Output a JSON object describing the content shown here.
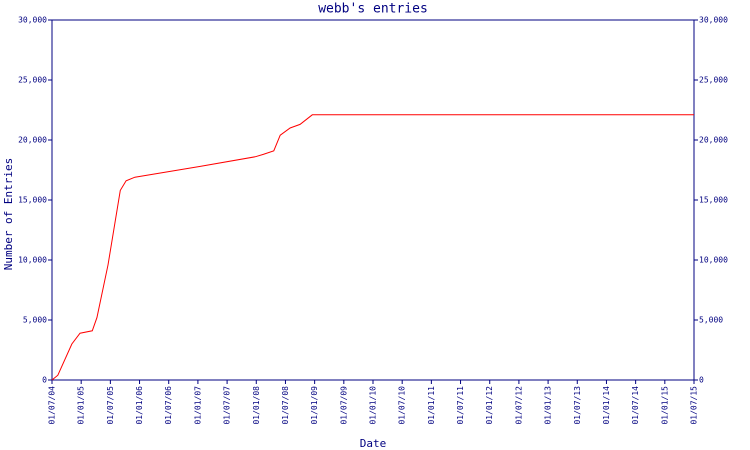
{
  "chart_data": {
    "type": "line",
    "title": "webb's entries",
    "x_label": "Date",
    "y_label": "Number of Entries",
    "x": [
      2004.5,
      2004.6,
      2004.84,
      2004.98,
      2005.19,
      2005.27,
      2005.46,
      2005.67,
      2005.77,
      2005.92,
      2007.04,
      2007.98,
      2008.12,
      2008.3,
      2008.41,
      2008.58,
      2008.75,
      2008.96,
      2015.5
    ],
    "series": [
      {
        "name": "webb",
        "color": "#ff0000",
        "values": [
          0,
          400,
          3000,
          3900,
          4100,
          5200,
          9600,
          15800,
          16600,
          16900,
          17800,
          18600,
          18800,
          19100,
          20400,
          21000,
          21300,
          22100,
          22100
        ]
      }
    ],
    "xlim": [
      2004.5,
      2015.5
    ],
    "xticks": [
      {
        "value": 2004.5,
        "label": "01/07/04"
      },
      {
        "value": 2005,
        "label": "01/01/05"
      },
      {
        "value": 2005.5,
        "label": "01/07/05"
      },
      {
        "value": 2006,
        "label": "01/01/06"
      },
      {
        "value": 2006.5,
        "label": "01/07/06"
      },
      {
        "value": 2007,
        "label": "01/01/07"
      },
      {
        "value": 2007.5,
        "label": "01/07/07"
      },
      {
        "value": 2008,
        "label": "01/01/08"
      },
      {
        "value": 2008.5,
        "label": "01/07/08"
      },
      {
        "value": 2009,
        "label": "01/01/09"
      },
      {
        "value": 2009.5,
        "label": "01/07/09"
      },
      {
        "value": 2010,
        "label": "01/01/10"
      },
      {
        "value": 2010.5,
        "label": "01/07/10"
      },
      {
        "value": 2011,
        "label": "01/01/11"
      },
      {
        "value": 2011.5,
        "label": "01/07/11"
      },
      {
        "value": 2012,
        "label": "01/01/12"
      },
      {
        "value": 2012.5,
        "label": "01/07/12"
      },
      {
        "value": 2013,
        "label": "01/01/13"
      },
      {
        "value": 2013.5,
        "label": "01/07/13"
      },
      {
        "value": 2014,
        "label": "01/01/14"
      },
      {
        "value": 2014.5,
        "label": "01/07/14"
      },
      {
        "value": 2015,
        "label": "01/01/15"
      },
      {
        "value": 2015.5,
        "label": "01/07/15"
      }
    ],
    "ylim": [
      0,
      30000
    ],
    "yticks": [
      0,
      {
        "value": 5000,
        "label": "5,000"
      },
      {
        "value": 10000,
        "label": "10,000"
      },
      {
        "value": 15000,
        "label": "15,000"
      },
      {
        "value": 20000,
        "label": "20,000"
      },
      {
        "value": 25000,
        "label": "25,000"
      },
      {
        "value": 30000,
        "label": "30,000"
      }
    ],
    "axis_color": "#000080"
  }
}
